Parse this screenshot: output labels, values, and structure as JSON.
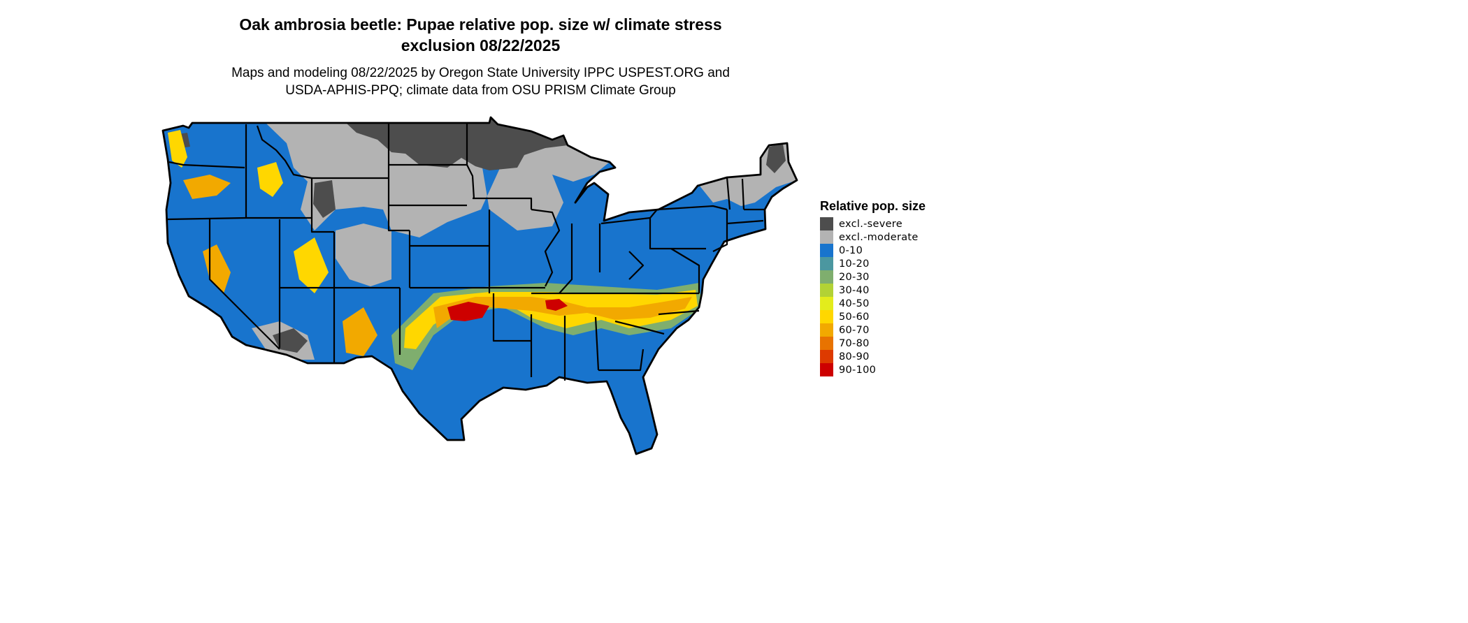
{
  "title": {
    "line1": "Oak ambrosia beetle: Pupae relative pop. size w/ climate stress",
    "line2": "exclusion 08/22/2025"
  },
  "subtitle": {
    "line1": "Maps and modeling 08/22/2025 by Oregon State University IPPC USPEST.ORG and",
    "line2": "USDA-APHIS-PPQ; climate data from OSU PRISM Climate Group"
  },
  "legend": {
    "title": "Relative pop. size",
    "items": [
      {
        "label": "excl.-severe",
        "color": "#4d4d4d"
      },
      {
        "label": "excl.-moderate",
        "color": "#b3b3b3"
      },
      {
        "label": "0-10",
        "color": "#1874cd"
      },
      {
        "label": "10-20",
        "color": "#4b97a0"
      },
      {
        "label": "20-30",
        "color": "#7fae6e"
      },
      {
        "label": "30-40",
        "color": "#b2d235"
      },
      {
        "label": "40-50",
        "color": "#e3ec1c"
      },
      {
        "label": "50-60",
        "color": "#ffd700"
      },
      {
        "label": "60-70",
        "color": "#f2a900"
      },
      {
        "label": "70-80",
        "color": "#e87300"
      },
      {
        "label": "80-90",
        "color": "#dd3a00"
      },
      {
        "label": "90-100",
        "color": "#cd0000"
      }
    ]
  },
  "map": {
    "region": "Contiguous United States",
    "zone_colors": {
      "severe": "#4d4d4d",
      "moderate": "#b3b3b3",
      "low": "#1874cd",
      "mid_low": "#7fae6e",
      "mid": "#ffd700",
      "high": "#f2a900",
      "very_high": "#cd0000"
    },
    "border_color": "#000000"
  }
}
